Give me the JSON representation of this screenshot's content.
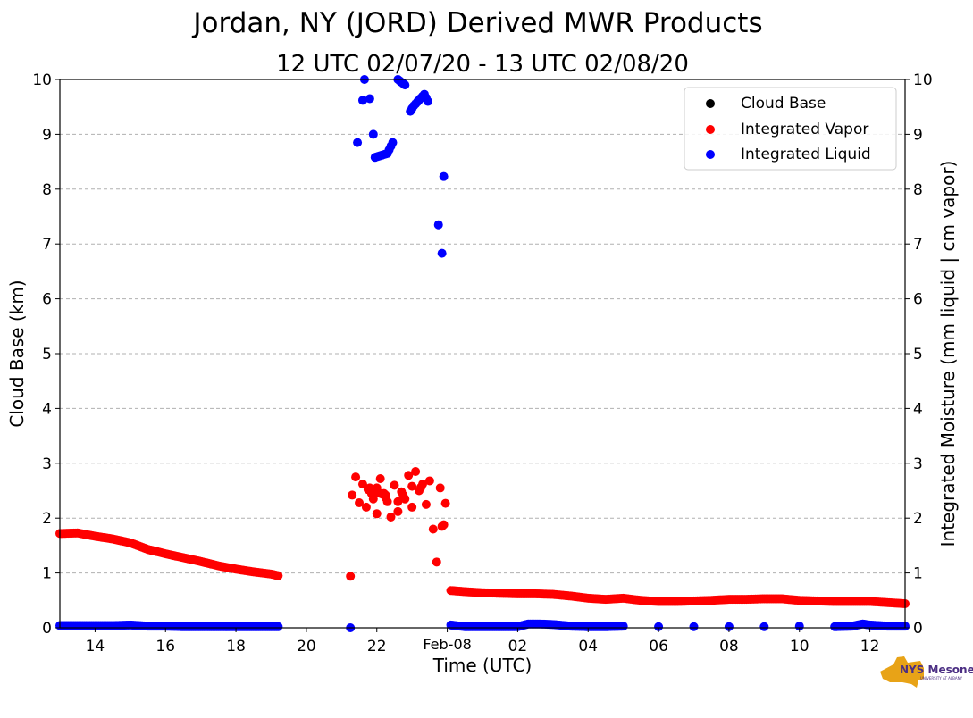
{
  "chart_data": {
    "type": "scatter",
    "title": "Jordan, NY (JORD) Derived MWR Products",
    "subtitle": "12 UTC 02/07/20 - 13 UTC 02/08/20",
    "xlabel": "Time (UTC)",
    "ylabel_left": "Cloud Base (km)",
    "ylabel_right": "Integrated Moisture (mm liquid | cm vapor)",
    "xlim_hours": [
      13,
      37
    ],
    "ylim": [
      0,
      10
    ],
    "x_ticks": [
      {
        "hour": 14,
        "label": "14"
      },
      {
        "hour": 16,
        "label": "16"
      },
      {
        "hour": 18,
        "label": "18"
      },
      {
        "hour": 20,
        "label": "20"
      },
      {
        "hour": 22,
        "label": "22"
      },
      {
        "hour": 24,
        "label": "Feb-08"
      },
      {
        "hour": 26,
        "label": "02"
      },
      {
        "hour": 28,
        "label": "04"
      },
      {
        "hour": 30,
        "label": "06"
      },
      {
        "hour": 32,
        "label": "08"
      },
      {
        "hour": 34,
        "label": "10"
      },
      {
        "hour": 36,
        "label": "12"
      }
    ],
    "y_ticks": [
      "0",
      "1",
      "2",
      "3",
      "4",
      "5",
      "6",
      "7",
      "8",
      "9",
      "10"
    ],
    "grid": "horizontal dashed",
    "legend_position": "top-right",
    "series": [
      {
        "name": "Cloud Base",
        "color": "#000000",
        "points": []
      },
      {
        "name": "Integrated Vapor",
        "color": "#ff0000",
        "points": [
          [
            13.0,
            1.72
          ],
          [
            13.5,
            1.73
          ],
          [
            14.0,
            1.67
          ],
          [
            14.5,
            1.62
          ],
          [
            15.0,
            1.55
          ],
          [
            15.5,
            1.43
          ],
          [
            16.0,
            1.35
          ],
          [
            16.5,
            1.28
          ],
          [
            17.0,
            1.21
          ],
          [
            17.5,
            1.13
          ],
          [
            18.0,
            1.07
          ],
          [
            18.5,
            1.02
          ],
          [
            19.0,
            0.98
          ],
          [
            19.2,
            0.95
          ],
          [
            21.25,
            0.94
          ],
          [
            21.3,
            2.42
          ],
          [
            21.4,
            2.75
          ],
          [
            21.5,
            2.28
          ],
          [
            21.6,
            2.62
          ],
          [
            21.7,
            2.2
          ],
          [
            21.8,
            2.55
          ],
          [
            21.9,
            2.35
          ],
          [
            22.0,
            2.08
          ],
          [
            22.1,
            2.72
          ],
          [
            22.2,
            2.45
          ],
          [
            22.3,
            2.3
          ],
          [
            22.4,
            2.02
          ],
          [
            22.5,
            2.6
          ],
          [
            22.6,
            2.12
          ],
          [
            22.7,
            2.48
          ],
          [
            22.8,
            2.35
          ],
          [
            22.9,
            2.78
          ],
          [
            23.0,
            2.2
          ],
          [
            23.1,
            2.85
          ],
          [
            23.2,
            2.5
          ],
          [
            23.3,
            2.62
          ],
          [
            23.4,
            2.25
          ],
          [
            23.5,
            2.68
          ],
          [
            23.6,
            1.8
          ],
          [
            23.7,
            1.2
          ],
          [
            23.8,
            2.55
          ],
          [
            23.85,
            1.85
          ],
          [
            23.9,
            1.88
          ],
          [
            23.95,
            2.27
          ],
          [
            22.0,
            2.55
          ],
          [
            22.6,
            2.3
          ],
          [
            23.0,
            2.58
          ],
          [
            21.75,
            2.52
          ],
          [
            22.25,
            2.42
          ],
          [
            24.1,
            0.68
          ],
          [
            24.5,
            0.66
          ],
          [
            25.0,
            0.64
          ],
          [
            25.5,
            0.63
          ],
          [
            26.0,
            0.62
          ],
          [
            26.5,
            0.62
          ],
          [
            27.0,
            0.61
          ],
          [
            27.5,
            0.58
          ],
          [
            28.0,
            0.54
          ],
          [
            28.5,
            0.52
          ],
          [
            29.0,
            0.54
          ],
          [
            29.5,
            0.5
          ],
          [
            30.0,
            0.48
          ],
          [
            30.5,
            0.48
          ],
          [
            31.0,
            0.49
          ],
          [
            31.5,
            0.5
          ],
          [
            32.0,
            0.52
          ],
          [
            32.5,
            0.52
          ],
          [
            33.0,
            0.53
          ],
          [
            33.5,
            0.53
          ],
          [
            34.0,
            0.5
          ],
          [
            34.5,
            0.49
          ],
          [
            35.0,
            0.48
          ],
          [
            35.5,
            0.48
          ],
          [
            36.0,
            0.48
          ],
          [
            36.5,
            0.46
          ],
          [
            37.0,
            0.44
          ]
        ]
      },
      {
        "name": "Integrated Liquid",
        "color": "#0000ff",
        "points": [
          [
            13.0,
            0.04
          ],
          [
            13.5,
            0.04
          ],
          [
            14.0,
            0.04
          ],
          [
            14.5,
            0.04
          ],
          [
            15.0,
            0.05
          ],
          [
            15.5,
            0.03
          ],
          [
            16.0,
            0.03
          ],
          [
            16.5,
            0.02
          ],
          [
            17.0,
            0.02
          ],
          [
            17.5,
            0.02
          ],
          [
            18.0,
            0.02
          ],
          [
            18.5,
            0.02
          ],
          [
            19.0,
            0.02
          ],
          [
            19.2,
            0.02
          ],
          [
            21.25,
            0.0
          ],
          [
            21.45,
            8.85
          ],
          [
            21.6,
            9.62
          ],
          [
            21.65,
            10.0
          ],
          [
            21.8,
            9.65
          ],
          [
            21.9,
            9.0
          ],
          [
            21.95,
            8.58
          ],
          [
            22.3,
            8.65
          ],
          [
            22.45,
            8.85
          ],
          [
            22.6,
            10.0
          ],
          [
            22.8,
            9.9
          ],
          [
            22.95,
            9.42
          ],
          [
            23.05,
            9.52
          ],
          [
            23.35,
            9.73
          ],
          [
            23.45,
            9.6
          ],
          [
            23.75,
            7.35
          ],
          [
            23.85,
            6.83
          ],
          [
            23.9,
            8.23
          ],
          [
            24.1,
            0.05
          ],
          [
            24.5,
            0.02
          ],
          [
            25.0,
            0.02
          ],
          [
            25.5,
            0.02
          ],
          [
            26.0,
            0.02
          ],
          [
            26.3,
            0.07
          ],
          [
            26.6,
            0.07
          ],
          [
            27.0,
            0.06
          ],
          [
            27.5,
            0.03
          ],
          [
            28.0,
            0.02
          ],
          [
            28.5,
            0.02
          ],
          [
            29.0,
            0.03
          ],
          [
            30.0,
            0.02
          ],
          [
            31.0,
            0.02
          ],
          [
            32.0,
            0.02
          ],
          [
            33.0,
            0.02
          ],
          [
            34.0,
            0.03
          ],
          [
            35.0,
            0.02
          ],
          [
            35.5,
            0.03
          ],
          [
            35.8,
            0.07
          ],
          [
            36.0,
            0.05
          ],
          [
            36.5,
            0.03
          ],
          [
            37.0,
            0.03
          ]
        ]
      }
    ]
  },
  "logo": {
    "text": "NYS Mesonet",
    "subtext": "UNIVERSITY AT ALBANY"
  }
}
